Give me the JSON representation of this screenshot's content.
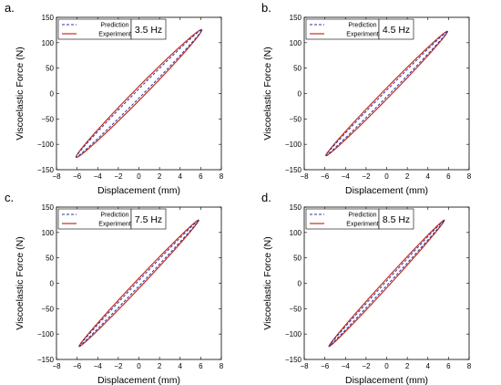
{
  "colors": {
    "prediction": "#3030a0",
    "experiment": "#c03020"
  },
  "chart_data": [
    {
      "panel_label": "a.",
      "type": "line",
      "xlabel": "Displacement (mm)",
      "ylabel": "Viscoelastic Force (N)",
      "xlim": [
        -8,
        8
      ],
      "ylim": [
        -150,
        150
      ],
      "xticks": [
        -8,
        -6,
        -4,
        -2,
        0,
        2,
        4,
        6,
        8
      ],
      "yticks": [
        -150,
        -100,
        -50,
        0,
        50,
        100,
        150
      ],
      "frequency_label": "3.5 Hz",
      "legend": {
        "placement": "top-left",
        "entries": [
          "Prediction",
          "Experiment"
        ]
      },
      "loop": {
        "amplitude_mm": 6.1,
        "peak_force_N": 125,
        "half_width_N": 14
      },
      "series": [
        {
          "name": "Prediction",
          "style": "dashed"
        },
        {
          "name": "Experiment",
          "style": "solid"
        }
      ]
    },
    {
      "panel_label": "b.",
      "type": "line",
      "xlabel": "Displacement (mm)",
      "ylabel": "Viscoelastic Force (N)",
      "xlim": [
        -8,
        8
      ],
      "ylim": [
        -150,
        150
      ],
      "xticks": [
        -8,
        -6,
        -4,
        -2,
        0,
        2,
        4,
        6,
        8
      ],
      "yticks": [
        -150,
        -100,
        -50,
        0,
        50,
        100,
        150
      ],
      "frequency_label": "4.5 Hz",
      "legend": {
        "placement": "top-left",
        "entries": [
          "Prediction",
          "Experiment"
        ]
      },
      "loop": {
        "amplitude_mm": 5.9,
        "peak_force_N": 122,
        "half_width_N": 11
      },
      "series": [
        {
          "name": "Prediction",
          "style": "dashed"
        },
        {
          "name": "Experiment",
          "style": "solid"
        }
      ]
    },
    {
      "panel_label": "c.",
      "type": "line",
      "xlabel": "Displacement (mm)",
      "ylabel": "Viscoelastic Force (N)",
      "xlim": [
        -8,
        8
      ],
      "ylim": [
        -150,
        150
      ],
      "xticks": [
        -8,
        -6,
        -4,
        -2,
        0,
        2,
        4,
        6,
        8
      ],
      "yticks": [
        -150,
        -100,
        -50,
        0,
        50,
        100,
        150
      ],
      "frequency_label": "7.5 Hz",
      "legend": {
        "placement": "top-left",
        "entries": [
          "Prediction",
          "Experiment"
        ]
      },
      "loop": {
        "amplitude_mm": 5.8,
        "peak_force_N": 124,
        "half_width_N": 10
      },
      "series": [
        {
          "name": "Prediction",
          "style": "dashed"
        },
        {
          "name": "Experiment",
          "style": "solid"
        }
      ]
    },
    {
      "panel_label": "d.",
      "type": "line",
      "xlabel": "Displacement (mm)",
      "ylabel": "Viscoelastic Force (N)",
      "xlim": [
        -8,
        8
      ],
      "ylim": [
        -150,
        150
      ],
      "xticks": [
        -8,
        -6,
        -4,
        -2,
        0,
        2,
        4,
        6,
        8
      ],
      "yticks": [
        -150,
        -100,
        -50,
        0,
        50,
        100,
        150
      ],
      "frequency_label": "8.5 Hz",
      "legend": {
        "placement": "top-left",
        "entries": [
          "Prediction",
          "Experiment"
        ]
      },
      "loop": {
        "amplitude_mm": 5.6,
        "peak_force_N": 124,
        "half_width_N": 9
      },
      "series": [
        {
          "name": "Prediction",
          "style": "dashed"
        },
        {
          "name": "Experiment",
          "style": "solid"
        }
      ]
    }
  ]
}
